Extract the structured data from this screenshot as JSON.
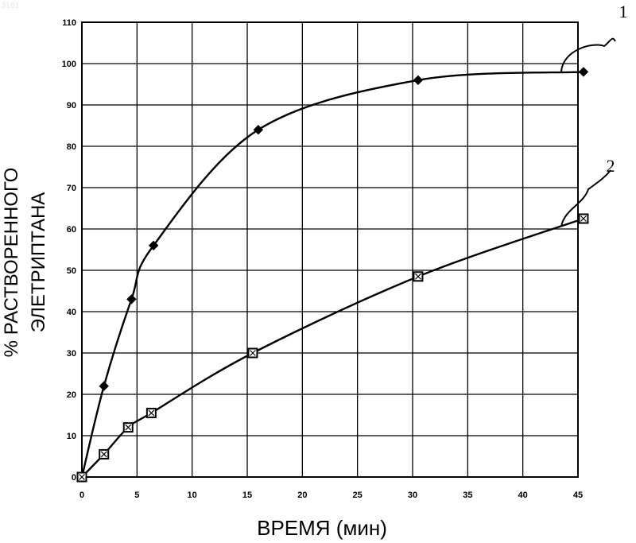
{
  "corner_mark": "3161",
  "chart_data": {
    "type": "line",
    "xlabel": "ВРЕМЯ  (мин)",
    "ylabel_lines": [
      "% РАСТВОРЕННОГО",
      "ЭЛЕТРИПТАНА"
    ],
    "xlim": [
      0,
      45
    ],
    "ylim": [
      0,
      110
    ],
    "xticks": [
      0,
      5,
      10,
      15,
      20,
      25,
      30,
      35,
      40,
      45
    ],
    "yticks": [
      0,
      10,
      20,
      30,
      40,
      50,
      60,
      70,
      80,
      90,
      100,
      110
    ],
    "x_tick_labels": [
      "0",
      "5",
      "10",
      "15",
      "20",
      "25",
      "30",
      "35",
      "40",
      "45"
    ],
    "y_tick_labels": [
      "0",
      "10",
      "20",
      "30",
      "40",
      "50",
      "60",
      "70",
      "80",
      "90",
      "100",
      "110"
    ],
    "grid": true,
    "series": [
      {
        "name": "1",
        "marker": "diamond",
        "color": "#000000",
        "points": [
          [
            0,
            0
          ],
          [
            2,
            22
          ],
          [
            4.5,
            43
          ],
          [
            6.5,
            56
          ],
          [
            16,
            84
          ],
          [
            30.5,
            96
          ],
          [
            45.5,
            98
          ]
        ]
      },
      {
        "name": "2",
        "marker": "square",
        "color": "#000000",
        "points": [
          [
            0,
            0
          ],
          [
            2,
            5.5
          ],
          [
            4.2,
            12
          ],
          [
            6.3,
            15.5
          ],
          [
            15.5,
            30
          ],
          [
            30.5,
            48.5
          ],
          [
            45.5,
            62.5
          ]
        ]
      }
    ]
  }
}
